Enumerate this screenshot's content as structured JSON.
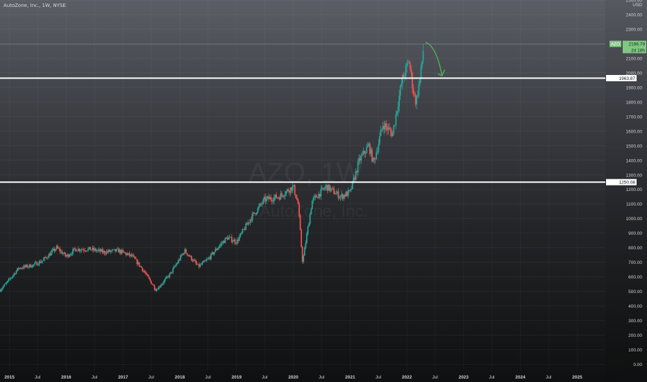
{
  "header": {
    "symbol_line": "AutoZone, Inc., 1W, NYSE"
  },
  "watermark": {
    "symbol": "AZO, 1W",
    "name": "AutoZone, Inc."
  },
  "price_axis": {
    "currency": "USD"
  },
  "price_tag": {
    "symbol": "AZO",
    "price": "2196.79",
    "countdown": "2d 18h"
  },
  "hlines": [
    {
      "label": "1963.87",
      "value": 1963.87
    },
    {
      "label": "1250.08",
      "value": 1250.08
    }
  ],
  "colors": {
    "up": "#26a69a",
    "down": "#ef5350",
    "level": "#ffffff",
    "arrow": "#4caf50",
    "tag": "#81c784",
    "axis_text": "#d0d2d6"
  },
  "chart_data": {
    "type": "candlestick",
    "title": "AutoZone, Inc., 1W, NYSE",
    "ylabel": "USD",
    "ylim": [
      -50,
      2500
    ],
    "y_ticks": [
      0,
      100,
      200,
      300,
      400,
      500,
      600,
      700,
      800,
      900,
      1000,
      1100,
      1200,
      1300,
      1400,
      1500,
      1600,
      1700,
      1800,
      1900,
      2000,
      2100,
      2200,
      2300,
      2400,
      2500
    ],
    "y_tick_labels": [
      "0.00",
      "100.00",
      "200.00",
      "300.00",
      "400.00",
      "500.00",
      "600.00",
      "700.00",
      "800.00",
      "900.00",
      "1000.00",
      "1100.00",
      "1200.00",
      "1300.00",
      "1400.00",
      "1500.00",
      "1600.00",
      "1700.00",
      "1800.00",
      "1900.00",
      "2000.00",
      "2100.00",
      "2200.00",
      "2300.00",
      "2400.00",
      "2500.00"
    ],
    "xlim": [
      "2014-11-01",
      "2025-07-01"
    ],
    "x_ticks": [
      {
        "date": "2015-01-01",
        "label": "2015",
        "major": true
      },
      {
        "date": "2015-07-01",
        "label": "Jul",
        "major": false
      },
      {
        "date": "2016-01-01",
        "label": "2016",
        "major": true
      },
      {
        "date": "2016-07-01",
        "label": "Jul",
        "major": false
      },
      {
        "date": "2017-01-01",
        "label": "2017",
        "major": true
      },
      {
        "date": "2017-07-01",
        "label": "Jul",
        "major": false
      },
      {
        "date": "2018-01-01",
        "label": "2018",
        "major": true
      },
      {
        "date": "2018-07-01",
        "label": "Jul",
        "major": false
      },
      {
        "date": "2019-01-01",
        "label": "2019",
        "major": true
      },
      {
        "date": "2019-07-01",
        "label": "Jul",
        "major": false
      },
      {
        "date": "2020-01-01",
        "label": "2020",
        "major": true
      },
      {
        "date": "2020-07-01",
        "label": "Jul",
        "major": false
      },
      {
        "date": "2021-01-01",
        "label": "2021",
        "major": true
      },
      {
        "date": "2021-07-01",
        "label": "Jul",
        "major": false
      },
      {
        "date": "2022-01-01",
        "label": "2022",
        "major": true
      },
      {
        "date": "2022-07-01",
        "label": "Jul",
        "major": false
      },
      {
        "date": "2023-01-01",
        "label": "2023",
        "major": true
      },
      {
        "date": "2023-07-01",
        "label": "Jul",
        "major": false
      },
      {
        "date": "2024-01-01",
        "label": "2024",
        "major": true
      },
      {
        "date": "2024-07-01",
        "label": "Jul",
        "major": false
      },
      {
        "date": "2025-01-01",
        "label": "2025",
        "major": true
      }
    ],
    "price_path": [
      [
        "2014-11-01",
        510
      ],
      [
        "2014-12-15",
        560
      ],
      [
        "2015-03-01",
        660
      ],
      [
        "2015-06-01",
        680
      ],
      [
        "2015-08-01",
        710
      ],
      [
        "2015-11-01",
        800
      ],
      [
        "2016-01-01",
        740
      ],
      [
        "2016-03-01",
        790
      ],
      [
        "2016-06-01",
        790
      ],
      [
        "2016-09-01",
        770
      ],
      [
        "2016-12-01",
        780
      ],
      [
        "2017-03-01",
        740
      ],
      [
        "2017-05-01",
        660
      ],
      [
        "2017-08-01",
        510
      ],
      [
        "2017-11-01",
        620
      ],
      [
        "2018-02-01",
        780
      ],
      [
        "2018-05-01",
        670
      ],
      [
        "2018-07-01",
        720
      ],
      [
        "2018-09-01",
        800
      ],
      [
        "2018-11-01",
        870
      ],
      [
        "2019-01-01",
        840
      ],
      [
        "2019-04-01",
        1000
      ],
      [
        "2019-07-01",
        1130
      ],
      [
        "2019-10-01",
        1150
      ],
      [
        "2020-01-01",
        1220
      ],
      [
        "2020-02-01",
        1100
      ],
      [
        "2020-03-01",
        700
      ],
      [
        "2020-05-01",
        1120
      ],
      [
        "2020-08-01",
        1220
      ],
      [
        "2020-11-01",
        1150
      ],
      [
        "2021-01-01",
        1180
      ],
      [
        "2021-03-01",
        1400
      ],
      [
        "2021-05-01",
        1500
      ],
      [
        "2021-06-01",
        1380
      ],
      [
        "2021-08-01",
        1650
      ],
      [
        "2021-10-01",
        1580
      ],
      [
        "2021-12-01",
        1950
      ],
      [
        "2022-01-15",
        2080
      ],
      [
        "2022-02-15",
        1850
      ],
      [
        "2022-03-01",
        1800
      ],
      [
        "2022-04-01",
        2000
      ],
      [
        "2022-04-20",
        2196.79
      ]
    ],
    "annotations": [
      {
        "type": "arrow",
        "from": [
          "2022-05-01",
          2210
        ],
        "to": [
          "2022-08-15",
          1980
        ]
      }
    ]
  }
}
